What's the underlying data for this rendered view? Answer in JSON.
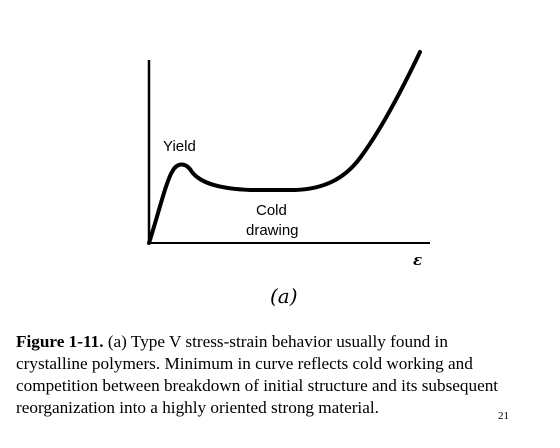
{
  "figure": {
    "labels": {
      "yield": "Yield",
      "cold": "Cold",
      "drawing": "drawing",
      "x_axis_symbol": "ε",
      "panel": "(a)"
    }
  },
  "caption": {
    "figure_number": "Figure 1-11.",
    "line1_rest": " (a)  Type V stress-strain behavior usually found in",
    "line2": "crystalline polymers.  Minimum in curve reflects cold working and",
    "line3": "competition between breakdown of initial structure and its subsequent",
    "line4": "reorganization into a highly oriented strong material."
  },
  "page_number": "21"
}
